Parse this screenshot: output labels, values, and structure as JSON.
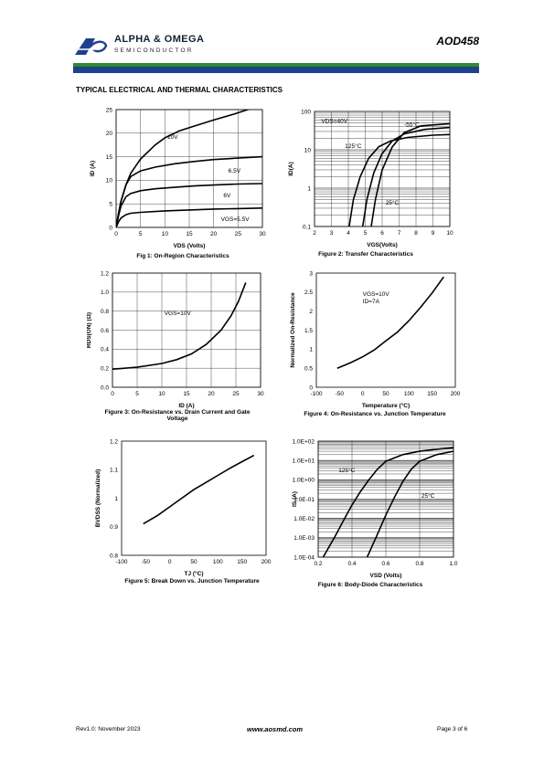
{
  "header": {
    "brand_line1": "ALPHA & OMEGA",
    "brand_line2": "SEMICONDUCTOR",
    "part_number": "AOD458",
    "colors": {
      "stripe_green": "#2e8b2e",
      "stripe_blue": "#1f3f8f",
      "logo": "#1f3f8f"
    }
  },
  "section_title": "TYPICAL ELECTRICAL AND THERMAL CHARACTERISTICS",
  "captions": {
    "fig1": "Fig 1: On-Region Characteristics",
    "fig2": "Figure 2: Transfer Characteristics",
    "fig3_l1": "Figure 3: On-Resistance vs. Drain Current and Gate",
    "fig3_l2": "Voltage",
    "fig4": "Figure 4: On-Resistance vs. Junction Temperature",
    "fig5": "Figure 5: Break Down vs. Junction Temperature",
    "fig6": "Figure 6: Body-Diode Characteristics"
  },
  "footer": {
    "rev": "Rev1.0: November 2023",
    "site": "www.aosmd.com",
    "page": "Page 3 of 6"
  },
  "chart_data": [
    {
      "id": "fig1",
      "type": "line",
      "xlabel": "VDS (Volts)",
      "ylabel": "ID (A)",
      "xlim": [
        0,
        30
      ],
      "ylim": [
        0,
        25
      ],
      "xticks": [
        0,
        5,
        10,
        15,
        20,
        25,
        30
      ],
      "yticks": [
        0,
        5,
        10,
        15,
        20,
        25
      ],
      "grid": true,
      "series": [
        {
          "name": "10V",
          "x": [
            0,
            0.5,
            1,
            2,
            3,
            5,
            8,
            10,
            13,
            16,
            20,
            24,
            27,
            30
          ],
          "y": [
            0,
            3,
            5.5,
            9,
            11.5,
            14.5,
            17.5,
            19,
            20.5,
            21.5,
            22.8,
            24,
            25,
            26
          ]
        },
        {
          "name": "6.5V",
          "x": [
            0,
            0.5,
            1,
            2,
            3,
            5,
            8,
            12,
            16,
            20,
            25,
            30
          ],
          "y": [
            0,
            3,
            5.5,
            9,
            10.8,
            12,
            12.8,
            13.5,
            14,
            14.4,
            14.7,
            15
          ]
        },
        {
          "name": "6V",
          "x": [
            0,
            0.5,
            1,
            2,
            3,
            5,
            8,
            12,
            16,
            20,
            25,
            30
          ],
          "y": [
            0,
            2.5,
            4.5,
            6.5,
            7.2,
            7.8,
            8.2,
            8.5,
            8.8,
            9,
            9.2,
            9.3
          ]
        },
        {
          "name": "VGS=5.5V",
          "x": [
            0,
            0.5,
            1,
            2,
            3,
            5,
            10,
            15,
            20,
            25,
            30
          ],
          "y": [
            0,
            1.2,
            2,
            2.7,
            3,
            3.2,
            3.5,
            3.7,
            3.9,
            4,
            4.1
          ]
        }
      ]
    },
    {
      "id": "fig2",
      "type": "line",
      "xlabel": "VGS(Volts)",
      "ylabel": "ID(A)",
      "xlim": [
        2,
        10
      ],
      "ylim": [
        0.1,
        100
      ],
      "yscale": "log",
      "xticks": [
        2,
        3,
        4,
        5,
        6,
        7,
        8,
        9,
        10
      ],
      "yticks": [
        0.1,
        1,
        10,
        100
      ],
      "grid": true,
      "condition": "VDS=40V",
      "series": [
        {
          "name": "125°C",
          "x": [
            4.05,
            4.3,
            4.7,
            5.2,
            5.8,
            6.5,
            7.5,
            9,
            10
          ],
          "y": [
            0.1,
            0.5,
            2,
            6,
            12,
            17,
            21,
            24,
            25
          ]
        },
        {
          "name": "25°C",
          "x": [
            4.85,
            5.1,
            5.5,
            6,
            6.6,
            7.3,
            8.5,
            10
          ],
          "y": [
            0.1,
            0.5,
            2.5,
            8,
            17,
            26,
            34,
            38
          ]
        },
        {
          "name": "-55°C",
          "x": [
            5.35,
            5.6,
            6,
            6.6,
            7.3,
            8.3,
            10
          ],
          "y": [
            0.1,
            0.5,
            3,
            12,
            28,
            42,
            48
          ]
        }
      ]
    },
    {
      "id": "fig3",
      "type": "line",
      "xlabel": "ID (A)",
      "ylabel": "RDS(ON) (Ω)",
      "xlim": [
        0,
        30
      ],
      "ylim": [
        0,
        1.2
      ],
      "xticks": [
        0,
        5,
        10,
        15,
        20,
        25,
        30
      ],
      "yticks": [
        0.0,
        0.2,
        0.4,
        0.6,
        0.8,
        1.0,
        1.2
      ],
      "grid": true,
      "series": [
        {
          "name": "VGS=10V",
          "x": [
            0,
            5,
            10,
            13,
            16,
            19,
            22,
            24,
            25.5,
            27
          ],
          "y": [
            0.19,
            0.21,
            0.25,
            0.29,
            0.35,
            0.45,
            0.6,
            0.75,
            0.9,
            1.1
          ]
        }
      ]
    },
    {
      "id": "fig4",
      "type": "line",
      "xlabel": "Temperature (°C)",
      "ylabel": "Normalized On-Resistance",
      "xlim": [
        -100,
        200
      ],
      "ylim": [
        0,
        3
      ],
      "xticks": [
        -100,
        -50,
        0,
        50,
        100,
        150,
        200
      ],
      "yticks": [
        0,
        0.5,
        1,
        1.5,
        2,
        2.5,
        3
      ],
      "grid": false,
      "condition": [
        "VGS=10V",
        "ID=7A"
      ],
      "series": [
        {
          "name": "",
          "x": [
            -55,
            -25,
            0,
            25,
            50,
            75,
            100,
            125,
            150,
            175
          ],
          "y": [
            0.5,
            0.65,
            0.8,
            0.98,
            1.22,
            1.45,
            1.75,
            2.1,
            2.48,
            2.9
          ]
        }
      ]
    },
    {
      "id": "fig5",
      "type": "line",
      "xlabel": "TJ (°C)",
      "ylabel": "BVDSS (Normalized)",
      "xlim": [
        -100,
        200
      ],
      "ylim": [
        0.8,
        1.2
      ],
      "xticks": [
        -100,
        -50,
        0,
        50,
        100,
        150,
        200
      ],
      "yticks": [
        0.8,
        0.9,
        1,
        1.1,
        1.2
      ],
      "grid": false,
      "series": [
        {
          "name": "",
          "x": [
            -55,
            -25,
            0,
            25,
            50,
            75,
            100,
            125,
            150,
            175
          ],
          "y": [
            0.91,
            0.94,
            0.97,
            1.0,
            1.03,
            1.055,
            1.08,
            1.105,
            1.128,
            1.15
          ]
        }
      ]
    },
    {
      "id": "fig6",
      "type": "line",
      "xlabel": "VSD (Volts)",
      "ylabel": "IS (A)",
      "xlim": [
        0.2,
        1.0
      ],
      "ylim": [
        0.0001,
        100
      ],
      "yscale": "log",
      "xticks": [
        0.2,
        0.4,
        0.6,
        0.8,
        1.0
      ],
      "yticks": [
        "1.0E-04",
        "1.0E-03",
        "1.0E-02",
        "1.0E-01",
        "1.0E+00",
        "1.0E+01",
        "1.0E+02"
      ],
      "xtick_labels": [
        "0.2",
        "0.4",
        "0.6",
        "0.8",
        "1.0"
      ],
      "grid": true,
      "series": [
        {
          "name": "125°C",
          "x": [
            0.23,
            0.3,
            0.35,
            0.4,
            0.45,
            0.5,
            0.55,
            0.6,
            0.7,
            0.8,
            0.9,
            1.0
          ],
          "y": [
            0.0001,
            0.0012,
            0.008,
            0.05,
            0.25,
            1,
            3.5,
            9,
            20,
            30,
            38,
            45
          ]
        },
        {
          "name": "25°C",
          "x": [
            0.49,
            0.55,
            0.6,
            0.65,
            0.7,
            0.75,
            0.8,
            0.9,
            1.0
          ],
          "y": [
            0.0001,
            0.0015,
            0.015,
            0.12,
            0.8,
            3.5,
            9,
            20,
            30
          ]
        }
      ]
    }
  ]
}
